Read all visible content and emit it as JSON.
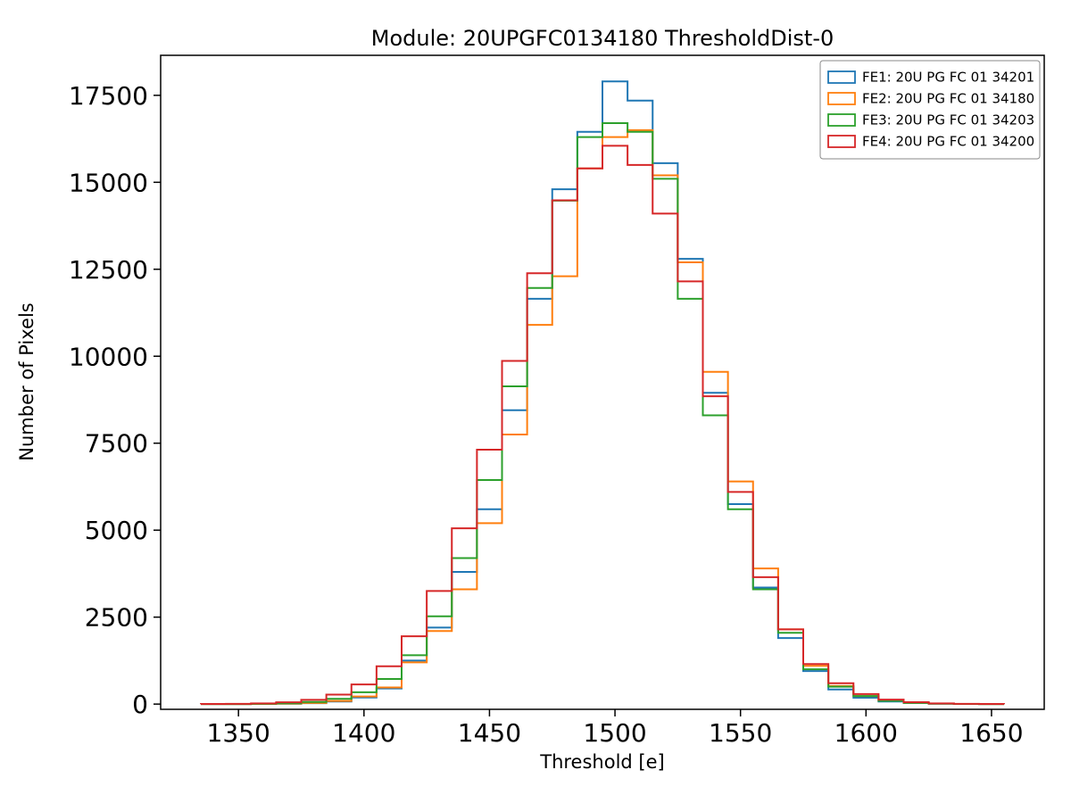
{
  "chart_data": {
    "type": "histogram-step",
    "title": "Module: 20UPGFC0134180 ThresholdDist-0",
    "xlabel": "Threshold [e]",
    "ylabel": "Number of Pixels",
    "xlim": [
      1319,
      1671
    ],
    "ylim": [
      -150,
      18650
    ],
    "x_ticks": [
      1350,
      1400,
      1450,
      1500,
      1550,
      1600,
      1650
    ],
    "y_ticks": [
      0,
      2500,
      5000,
      7500,
      10000,
      12500,
      15000,
      17500
    ],
    "grid": false,
    "background": "#ffffff",
    "bin_width": 10,
    "bin_edges": [
      1335,
      1345,
      1355,
      1365,
      1375,
      1385,
      1395,
      1405,
      1415,
      1425,
      1435,
      1445,
      1455,
      1465,
      1475,
      1485,
      1495,
      1505,
      1515,
      1525,
      1535,
      1545,
      1555,
      1565,
      1575,
      1585,
      1595,
      1605,
      1615,
      1625,
      1635,
      1645,
      1655
    ],
    "series": [
      {
        "name": "FE1: 20U PG FC 01 34201",
        "color": "#1f77b4",
        "values": [
          0,
          1,
          3,
          9,
          26,
          74,
          190,
          450,
          1250,
          2200,
          3800,
          5600,
          8450,
          11650,
          14800,
          16450,
          17900,
          17350,
          15550,
          12800,
          8950,
          5750,
          3350,
          1900,
          950,
          420,
          185,
          75,
          28,
          9,
          3,
          1
        ]
      },
      {
        "name": "FE2: 20U PG FC 01 34180",
        "color": "#ff7f0e",
        "values": [
          0,
          1,
          4,
          12,
          34,
          90,
          220,
          480,
          1200,
          2100,
          3300,
          5200,
          7750,
          10900,
          12300,
          15400,
          16300,
          16500,
          15200,
          12700,
          9550,
          6400,
          3900,
          2150,
          1100,
          520,
          230,
          95,
          36,
          12,
          4,
          1
        ]
      },
      {
        "name": "FE3: 20U PG FC 01 34203",
        "color": "#2ca02c",
        "values": [
          1,
          2,
          8,
          23,
          61,
          150,
          342,
          721,
          1404,
          2525,
          4197,
          6441,
          9133,
          11962,
          14472,
          16300,
          16700,
          16450,
          15100,
          11650,
          8300,
          5600,
          3300,
          2050,
          1000,
          500,
          230,
          95,
          36,
          12,
          4,
          1
        ]
      },
      {
        "name": "FE4: 20U PG FC 01 34200",
        "color": "#d62728",
        "values": [
          3,
          7,
          20,
          52,
          124,
          274,
          565,
          1087,
          1949,
          3253,
          5054,
          7315,
          9864,
          12384,
          14482,
          15400,
          16050,
          15500,
          14100,
          12150,
          8850,
          6100,
          3650,
          2150,
          1150,
          600,
          290,
          130,
          55,
          20,
          8,
          3
        ]
      }
    ],
    "legend": {
      "position": "upper right"
    }
  }
}
